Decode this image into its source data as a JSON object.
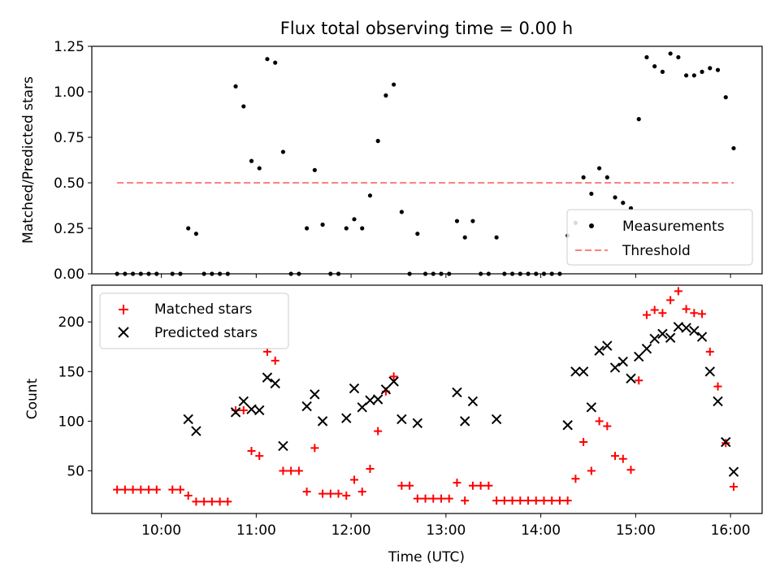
{
  "chart_data": [
    {
      "type": "scatter",
      "title": "Flux total observing time = 0.00 h",
      "xlabel": "",
      "ylabel": "Matched/Predicted stars",
      "xlim": [
        "09:16",
        "16:20"
      ],
      "ylim": [
        0,
        1.25
      ],
      "y_ticks": [
        0,
        0.25,
        0.5,
        0.75,
        1.0,
        1.25
      ],
      "y_tick_labels": [
        "0.00",
        "0.25",
        "0.50",
        "0.75",
        "1.00",
        "1.25"
      ],
      "x_ticks": [
        "10:00",
        "11:00",
        "12:00",
        "13:00",
        "14:00",
        "15:00",
        "16:00"
      ],
      "x_tick_labels_visible": false,
      "grid": false,
      "legend": {
        "position": "lower-right",
        "entries": [
          "Measurements",
          "Threshold"
        ]
      },
      "series": [
        {
          "name": "Measurements",
          "marker": "dot",
          "color": "#000000",
          "points": [
            [
              "09:32",
              0
            ],
            [
              "09:37",
              0
            ],
            [
              "09:42",
              0
            ],
            [
              "09:47",
              0
            ],
            [
              "09:52",
              0
            ],
            [
              "09:57",
              0
            ],
            [
              "10:07",
              0
            ],
            [
              "10:12",
              0
            ],
            [
              "10:17",
              0.25
            ],
            [
              "10:22",
              0.22
            ],
            [
              "10:27",
              0
            ],
            [
              "10:32",
              0
            ],
            [
              "10:37",
              0
            ],
            [
              "10:42",
              0
            ],
            [
              "10:47",
              1.03
            ],
            [
              "10:52",
              0.92
            ],
            [
              "10:57",
              0.62
            ],
            [
              "11:02",
              0.58
            ],
            [
              "11:07",
              1.18
            ],
            [
              "11:12",
              1.16
            ],
            [
              "11:17",
              0.67
            ],
            [
              "11:22",
              0
            ],
            [
              "11:27",
              0
            ],
            [
              "11:32",
              0.25
            ],
            [
              "11:37",
              0.57
            ],
            [
              "11:42",
              0.27
            ],
            [
              "11:47",
              0
            ],
            [
              "11:52",
              0
            ],
            [
              "11:57",
              0.25
            ],
            [
              "12:02",
              0.3
            ],
            [
              "12:07",
              0.25
            ],
            [
              "12:12",
              0.43
            ],
            [
              "12:17",
              0.73
            ],
            [
              "12:22",
              0.98
            ],
            [
              "12:27",
              1.04
            ],
            [
              "12:32",
              0.34
            ],
            [
              "12:37",
              0
            ],
            [
              "12:42",
              0.22
            ],
            [
              "12:47",
              0
            ],
            [
              "12:52",
              0
            ],
            [
              "12:57",
              0
            ],
            [
              "13:02",
              0
            ],
            [
              "13:07",
              0.29
            ],
            [
              "13:12",
              0.2
            ],
            [
              "13:17",
              0.29
            ],
            [
              "13:22",
              0
            ],
            [
              "13:27",
              0
            ],
            [
              "13:32",
              0.2
            ],
            [
              "13:37",
              0
            ],
            [
              "13:42",
              0
            ],
            [
              "13:47",
              0
            ],
            [
              "13:52",
              0
            ],
            [
              "13:57",
              0
            ],
            [
              "14:02",
              0
            ],
            [
              "14:07",
              0
            ],
            [
              "14:12",
              0
            ],
            [
              "14:17",
              0.21
            ],
            [
              "14:22",
              0.28
            ],
            [
              "14:27",
              0.53
            ],
            [
              "14:32",
              0.44
            ],
            [
              "14:37",
              0.58
            ],
            [
              "14:42",
              0.53
            ],
            [
              "14:47",
              0.42
            ],
            [
              "14:52",
              0.39
            ],
            [
              "14:57",
              0.36
            ],
            [
              "15:02",
              0.85
            ],
            [
              "15:07",
              1.19
            ],
            [
              "15:12",
              1.14
            ],
            [
              "15:17",
              1.11
            ],
            [
              "15:22",
              1.21
            ],
            [
              "15:27",
              1.19
            ],
            [
              "15:32",
              1.09
            ],
            [
              "15:37",
              1.09
            ],
            [
              "15:42",
              1.11
            ],
            [
              "15:47",
              1.13
            ],
            [
              "15:52",
              1.12
            ],
            [
              "15:57",
              0.97
            ],
            [
              "16:02",
              0.69
            ]
          ]
        },
        {
          "name": "Threshold",
          "marker": "dashed-line",
          "color": "#ff7f7f",
          "points": [
            [
              "09:32",
              0.5
            ],
            [
              "16:02",
              0.5
            ]
          ]
        }
      ]
    },
    {
      "type": "scatter",
      "title": "",
      "xlabel": "Time (UTC)",
      "ylabel": "Count",
      "xlim": [
        "09:16",
        "16:20"
      ],
      "ylim": [
        7,
        237
      ],
      "y_ticks": [
        50,
        100,
        150,
        200
      ],
      "y_tick_labels": [
        "50",
        "100",
        "150",
        "200"
      ],
      "x_ticks": [
        "10:00",
        "11:00",
        "12:00",
        "13:00",
        "14:00",
        "15:00",
        "16:00"
      ],
      "x_tick_labels": [
        "10:00",
        "11:00",
        "12:00",
        "13:00",
        "14:00",
        "15:00",
        "16:00"
      ],
      "grid": false,
      "legend": {
        "position": "upper-left",
        "entries": [
          "Matched stars",
          "Predicted stars"
        ]
      },
      "series": [
        {
          "name": "Matched stars",
          "marker": "plus",
          "color": "#ff0000",
          "points": [
            [
              "09:32",
              31
            ],
            [
              "09:37",
              31
            ],
            [
              "09:42",
              31
            ],
            [
              "09:47",
              31
            ],
            [
              "09:52",
              31
            ],
            [
              "09:57",
              31
            ],
            [
              "10:07",
              31
            ],
            [
              "10:12",
              31
            ],
            [
              "10:17",
              25
            ],
            [
              "10:22",
              19
            ],
            [
              "10:27",
              19
            ],
            [
              "10:32",
              19
            ],
            [
              "10:37",
              19
            ],
            [
              "10:42",
              19
            ],
            [
              "10:47",
              111
            ],
            [
              "10:52",
              111
            ],
            [
              "10:57",
              70
            ],
            [
              "11:02",
              65
            ],
            [
              "11:07",
              170
            ],
            [
              "11:12",
              161
            ],
            [
              "11:17",
              50
            ],
            [
              "11:22",
              50
            ],
            [
              "11:27",
              50
            ],
            [
              "11:32",
              29
            ],
            [
              "11:37",
              73
            ],
            [
              "11:42",
              27
            ],
            [
              "11:47",
              27
            ],
            [
              "11:52",
              27
            ],
            [
              "11:57",
              25
            ],
            [
              "12:02",
              41
            ],
            [
              "12:07",
              29
            ],
            [
              "12:12",
              52
            ],
            [
              "12:17",
              90
            ],
            [
              "12:22",
              130
            ],
            [
              "12:27",
              145
            ],
            [
              "12:32",
              35
            ],
            [
              "12:37",
              35
            ],
            [
              "12:42",
              22
            ],
            [
              "12:47",
              22
            ],
            [
              "12:52",
              22
            ],
            [
              "12:57",
              22
            ],
            [
              "13:02",
              22
            ],
            [
              "13:07",
              38
            ],
            [
              "13:12",
              20
            ],
            [
              "13:17",
              35
            ],
            [
              "13:22",
              35
            ],
            [
              "13:27",
              35
            ],
            [
              "13:32",
              20
            ],
            [
              "13:37",
              20
            ],
            [
              "13:42",
              20
            ],
            [
              "13:47",
              20
            ],
            [
              "13:52",
              20
            ],
            [
              "13:57",
              20
            ],
            [
              "14:02",
              20
            ],
            [
              "14:07",
              20
            ],
            [
              "14:12",
              20
            ],
            [
              "14:17",
              20
            ],
            [
              "14:22",
              42
            ],
            [
              "14:27",
              79
            ],
            [
              "14:32",
              50
            ],
            [
              "14:37",
              100
            ],
            [
              "14:42",
              95
            ],
            [
              "14:47",
              65
            ],
            [
              "14:52",
              62
            ],
            [
              "14:57",
              51
            ],
            [
              "15:02",
              141
            ],
            [
              "15:07",
              207
            ],
            [
              "15:12",
              212
            ],
            [
              "15:17",
              209
            ],
            [
              "15:22",
              222
            ],
            [
              "15:27",
              231
            ],
            [
              "15:32",
              213
            ],
            [
              "15:37",
              209
            ],
            [
              "15:42",
              208
            ],
            [
              "15:47",
              170
            ],
            [
              "15:52",
              135
            ],
            [
              "15:57",
              78
            ],
            [
              "16:02",
              34
            ]
          ]
        },
        {
          "name": "Predicted stars",
          "marker": "x",
          "color": "#000000",
          "points": [
            [
              "10:17",
              102
            ],
            [
              "10:22",
              90
            ],
            [
              "10:47",
              109
            ],
            [
              "10:52",
              120
            ],
            [
              "10:57",
              112
            ],
            [
              "11:02",
              111
            ],
            [
              "11:07",
              144
            ],
            [
              "11:12",
              138
            ],
            [
              "11:17",
              75
            ],
            [
              "11:32",
              115
            ],
            [
              "11:37",
              127
            ],
            [
              "11:42",
              100
            ],
            [
              "11:57",
              103
            ],
            [
              "12:02",
              133
            ],
            [
              "12:07",
              114
            ],
            [
              "12:12",
              121
            ],
            [
              "12:17",
              122
            ],
            [
              "12:22",
              132
            ],
            [
              "12:27",
              140
            ],
            [
              "12:32",
              102
            ],
            [
              "12:42",
              98
            ],
            [
              "13:07",
              129
            ],
            [
              "13:12",
              100
            ],
            [
              "13:17",
              120
            ],
            [
              "13:32",
              102
            ],
            [
              "14:17",
              96
            ],
            [
              "14:22",
              150
            ],
            [
              "14:27",
              150
            ],
            [
              "14:32",
              114
            ],
            [
              "14:37",
              171
            ],
            [
              "14:42",
              176
            ],
            [
              "14:47",
              154
            ],
            [
              "14:52",
              160
            ],
            [
              "14:57",
              143
            ],
            [
              "15:02",
              165
            ],
            [
              "15:07",
              173
            ],
            [
              "15:12",
              183
            ],
            [
              "15:17",
              188
            ],
            [
              "15:22",
              184
            ],
            [
              "15:27",
              195
            ],
            [
              "15:32",
              194
            ],
            [
              "15:37",
              191
            ],
            [
              "15:42",
              185
            ],
            [
              "15:47",
              150
            ],
            [
              "15:52",
              120
            ],
            [
              "15:57",
              79
            ],
            [
              "16:02",
              49
            ]
          ]
        }
      ]
    }
  ]
}
